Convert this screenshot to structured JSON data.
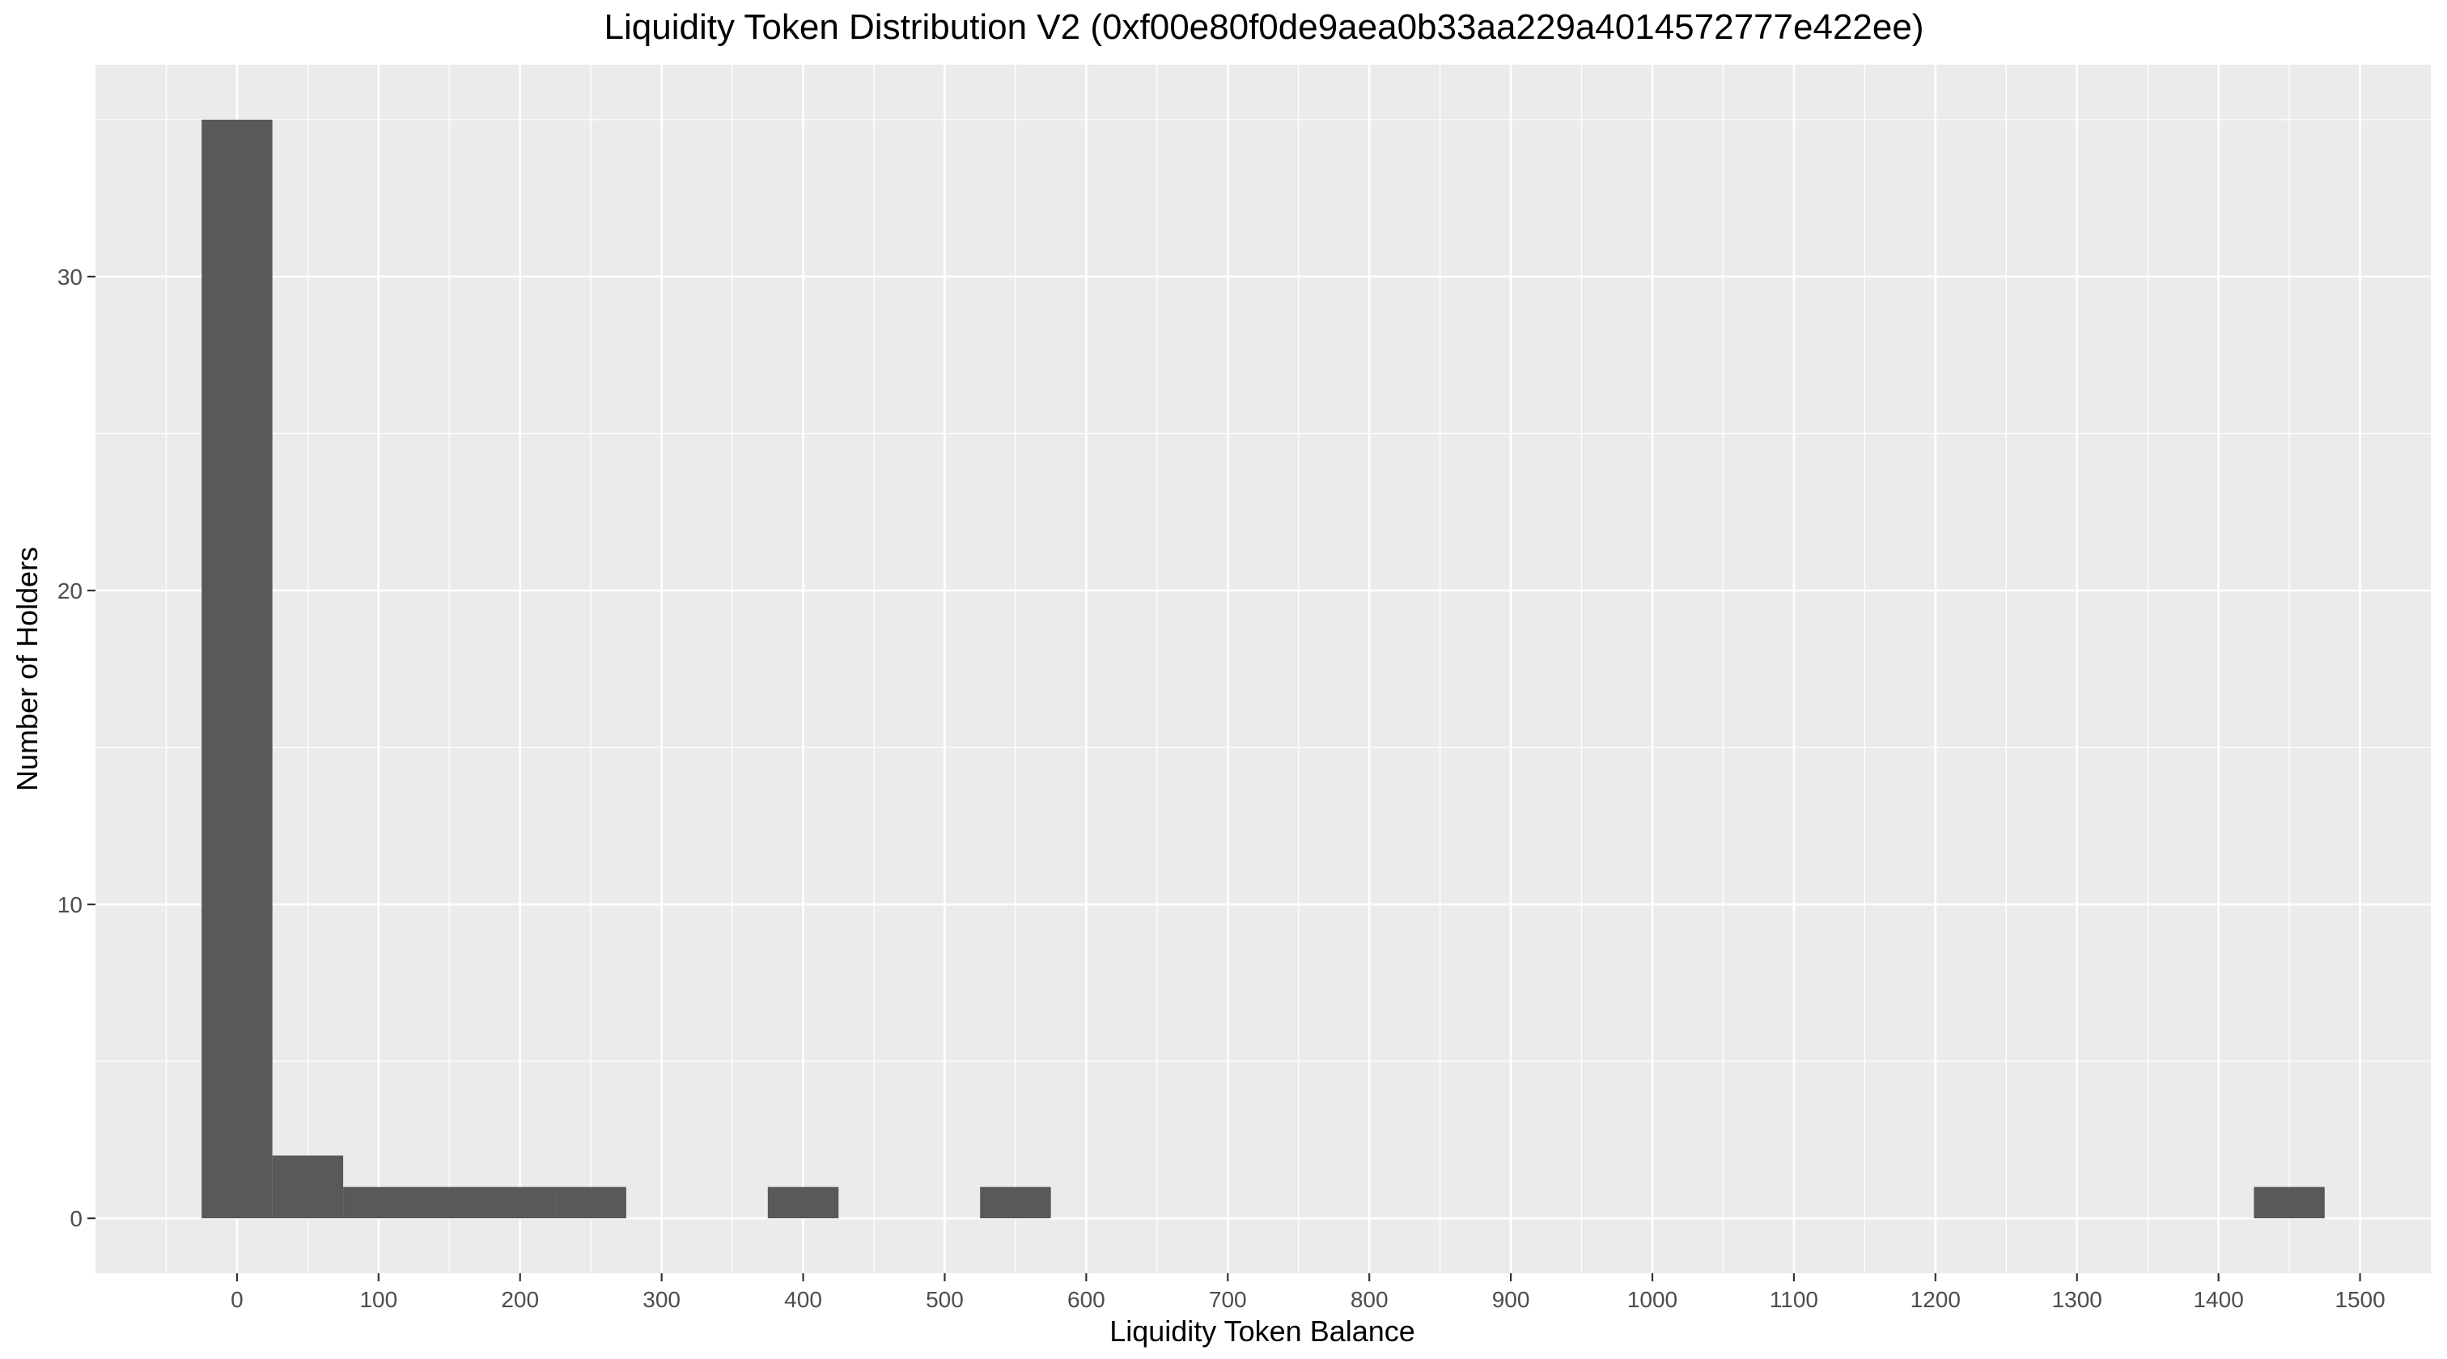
{
  "chart_data": {
    "type": "bar",
    "title": "Liquidity Token Distribution V2 (0xf00e80f0de9aea0b33aa229a4014572777e422ee)",
    "xlabel": "Liquidity Token Balance",
    "ylabel": "Number of Holders",
    "bin_width": 50,
    "bins": [
      {
        "x_start": -25,
        "x_end": 25,
        "count": 35
      },
      {
        "x_start": 25,
        "x_end": 75,
        "count": 2
      },
      {
        "x_start": 75,
        "x_end": 125,
        "count": 1
      },
      {
        "x_start": 125,
        "x_end": 175,
        "count": 1
      },
      {
        "x_start": 175,
        "x_end": 225,
        "count": 1
      },
      {
        "x_start": 225,
        "x_end": 275,
        "count": 1
      },
      {
        "x_start": 375,
        "x_end": 425,
        "count": 1
      },
      {
        "x_start": 525,
        "x_end": 575,
        "count": 1
      },
      {
        "x_start": 1425,
        "x_end": 1475,
        "count": 1
      }
    ],
    "xlim": [
      -100,
      1550
    ],
    "ylim": [
      -1.75,
      36.75
    ],
    "x_ticks": [
      0,
      100,
      200,
      300,
      400,
      500,
      600,
      700,
      800,
      900,
      1000,
      1100,
      1200,
      1300,
      1400,
      1500
    ],
    "x_tick_labels": [
      "0",
      "100",
      "200",
      "300",
      "400",
      "500",
      "600",
      "700",
      "800",
      "900",
      "1000",
      "1100",
      "1200",
      "1300",
      "1400",
      "1500"
    ],
    "y_ticks": [
      0,
      10,
      20,
      30
    ],
    "y_tick_labels": [
      "0",
      "10",
      "20",
      "30"
    ],
    "grid": true,
    "bar_color": "#595959",
    "panel_color": "#ebebeb"
  }
}
